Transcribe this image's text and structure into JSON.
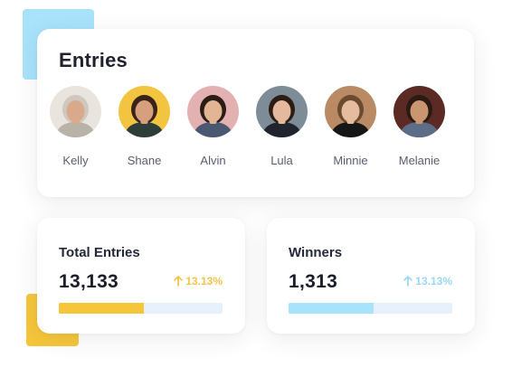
{
  "colors": {
    "accent_yellow": "#f6c63a",
    "accent_blue": "#a9e2fb",
    "yellow_track": "#e6f1fc",
    "blue_track": "#e6f1fc",
    "yellow_text": "#f3c44c",
    "blue_text": "#9ad9f3"
  },
  "entries": {
    "title": "Entries",
    "people": [
      {
        "name": "Kelly",
        "avatar": "woman-hijab-avatar",
        "bg": "#e9e4dd",
        "skin": "#d9a98c",
        "hair": "#cfc8bf",
        "shirt": "#b9b2a8"
      },
      {
        "name": "Shane",
        "avatar": "woman-yellow-bg-avatar",
        "bg": "#f2c440",
        "skin": "#d7a07d",
        "hair": "#3a2418",
        "shirt": "#2d3e3a"
      },
      {
        "name": "Alvin",
        "avatar": "man-suit-avatar",
        "bg": "#e3b1b1",
        "skin": "#e2b594",
        "hair": "#2b1d16",
        "shirt": "#4a5872"
      },
      {
        "name": "Lula",
        "avatar": "man-dark-suit-avatar",
        "bg": "#7e8c98",
        "skin": "#e4b99e",
        "hair": "#2b1c14",
        "shirt": "#20242c"
      },
      {
        "name": "Minnie",
        "avatar": "man-dark-shirt-avatar",
        "bg": "#b98a63",
        "skin": "#e6bca0",
        "hair": "#6b4a2f",
        "shirt": "#161616"
      },
      {
        "name": "Melanie",
        "avatar": "man-night-city-avatar",
        "bg": "#5b2a24",
        "skin": "#c99670",
        "hair": "#2a1b12",
        "shirt": "#5c6d88"
      }
    ]
  },
  "stats": {
    "total": {
      "title": "Total Entries",
      "value": "13,133",
      "change": "13.13%",
      "arrow_icon": "arrow-up-icon",
      "progress": 0.52
    },
    "winners": {
      "title": "Winners",
      "value": "1,313",
      "change": "13.13%",
      "arrow_icon": "arrow-up-icon",
      "progress": 0.52
    }
  }
}
